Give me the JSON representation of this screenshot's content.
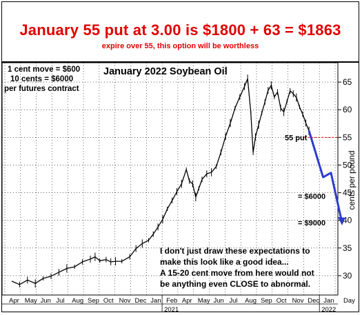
{
  "header": {
    "headline": "January 55 put at 3.00 is $1800 + 63 = $1863",
    "subline": "expire over 55, this option will be worthless"
  },
  "notes": {
    "line1": "1 cent move = $600",
    "line2": "10 cents = $6000",
    "line3": "per futures contract"
  },
  "commentary": {
    "line1": "I don't just draw these expectations to",
    "line2": "make this look like a good idea...",
    "line3": "A 15-20 cent move from here would not",
    "line4": "be anything even CLOSE to abnormal."
  },
  "chart_data": {
    "type": "line",
    "title": "January 2022 Soybean Oil",
    "ylabel": "cents per pound",
    "ylim": [
      26.5,
      68.5
    ],
    "yticks": [
      30,
      35,
      40,
      45,
      50,
      55,
      60,
      65
    ],
    "x_month_labels": [
      "Apr",
      "May",
      "Jun",
      "Jul",
      "Aug",
      "Sep",
      "Oct",
      "Nov",
      "Dec",
      "Jan",
      "Feb",
      "Apr",
      "May",
      "Jun",
      "Jul",
      "Aug",
      "Sep",
      "Oct",
      "Nov",
      "Dec",
      "Jan",
      "Day"
    ],
    "x_year_labels": [
      "2021",
      "2022"
    ],
    "price_series": {
      "name": "",
      "points": [
        [
          0.0,
          29.0
        ],
        [
          0.5,
          28.4
        ],
        [
          1.0,
          29.2
        ],
        [
          1.5,
          28.6
        ],
        [
          2.0,
          29.5
        ],
        [
          2.5,
          29.9
        ],
        [
          3.0,
          30.6
        ],
        [
          3.5,
          31.3
        ],
        [
          4.0,
          31.6
        ],
        [
          4.5,
          32.5
        ],
        [
          5.0,
          33.0
        ],
        [
          5.3,
          33.4
        ],
        [
          5.6,
          32.7
        ],
        [
          6.0,
          32.9
        ],
        [
          6.3,
          32.5
        ],
        [
          6.6,
          32.6
        ],
        [
          7.0,
          32.6
        ],
        [
          7.5,
          33.4
        ],
        [
          7.9,
          34.9
        ],
        [
          8.3,
          35.8
        ],
        [
          8.7,
          36.4
        ],
        [
          9.0,
          37.5
        ],
        [
          9.3,
          38.8
        ],
        [
          9.6,
          40.2
        ],
        [
          9.9,
          42.1
        ],
        [
          10.2,
          43.6
        ],
        [
          10.5,
          45.2
        ],
        [
          10.8,
          46.6
        ],
        [
          11.1,
          49.2
        ],
        [
          11.3,
          47.1
        ],
        [
          11.5,
          46.6
        ],
        [
          11.7,
          44.2
        ],
        [
          11.9,
          45.8
        ],
        [
          12.1,
          47.4
        ],
        [
          12.4,
          48.4
        ],
        [
          12.7,
          48.7
        ],
        [
          13.0,
          49.7
        ],
        [
          13.3,
          52.3
        ],
        [
          13.6,
          55.2
        ],
        [
          13.9,
          57.6
        ],
        [
          14.2,
          60.3
        ],
        [
          14.5,
          62.3
        ],
        [
          14.8,
          64.2
        ],
        [
          15.0,
          65.6
        ],
        [
          15.2,
          59.6
        ],
        [
          15.35,
          52.3
        ],
        [
          15.5,
          55.1
        ],
        [
          15.7,
          57.3
        ],
        [
          15.9,
          59.4
        ],
        [
          16.1,
          61.4
        ],
        [
          16.3,
          63.5
        ],
        [
          16.5,
          64.4
        ],
        [
          16.7,
          62.3
        ],
        [
          16.9,
          63.2
        ],
        [
          17.1,
          60.3
        ],
        [
          17.3,
          59.6
        ],
        [
          17.5,
          61.5
        ],
        [
          17.7,
          63.4
        ],
        [
          17.9,
          62.9
        ],
        [
          18.1,
          62.2
        ],
        [
          18.3,
          60.5
        ],
        [
          18.5,
          59.2
        ],
        [
          18.7,
          57.6
        ],
        [
          18.9,
          56.2
        ]
      ]
    },
    "projection_series": {
      "name": "",
      "color": "#2b3bd0",
      "points": [
        [
          18.9,
          56.2
        ],
        [
          19.8,
          47.8
        ],
        [
          20.3,
          48.6
        ],
        [
          21.0,
          39.6
        ]
      ]
    },
    "annotations": [
      {
        "text": "55 put",
        "y": 55,
        "color": "#e00000"
      },
      {
        "text": "= $6000",
        "y": 44.4,
        "color": "#e00000"
      },
      {
        "text": "= $9000",
        "y": 39.6,
        "color": "#e00000"
      }
    ]
  }
}
